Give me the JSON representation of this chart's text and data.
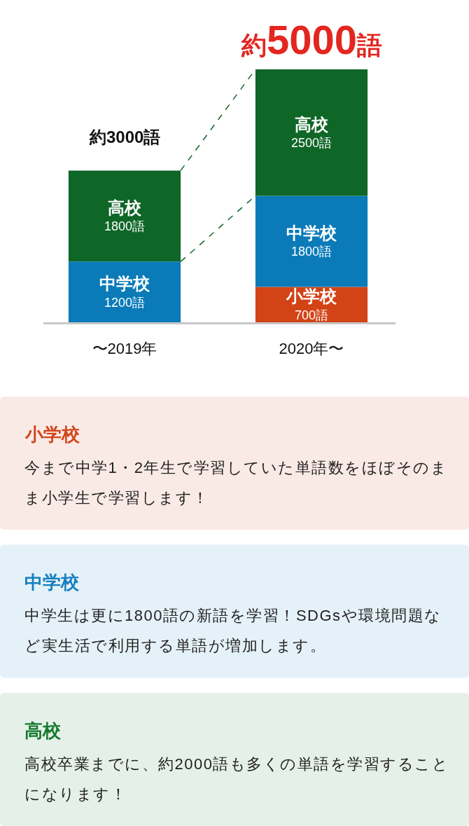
{
  "chart_data": [
    {
      "type": "bar",
      "stacked": true,
      "categories": [
        "〜2019年",
        "2020年〜"
      ],
      "series": [
        {
          "name": "小学校",
          "color": "#d24316",
          "values": [
            null,
            700
          ],
          "value_labels": [
            null,
            "700語"
          ]
        },
        {
          "name": "中学校",
          "color": "#0a7bb8",
          "values": [
            1200,
            1800
          ],
          "value_labels": [
            "1200語",
            "1800語"
          ]
        },
        {
          "name": "高校",
          "color": "#0e6627",
          "values": [
            1800,
            2500
          ],
          "value_labels": [
            "1800語",
            "2500語"
          ]
        }
      ],
      "totals": [
        "約3000語",
        "約5000語"
      ]
    },
    {
      "type": "other",
      "title": "小学校",
      "color": "#d4441a",
      "annotations": [
        "今まで中学1・2年生で学習していた単語数をほぼそのまま小学生で学習します！"
      ]
    },
    {
      "type": "other",
      "title": "中学校",
      "color": "#1480bf",
      "annotations": [
        "中学生は更に1800語の新語を学習！SDGsや環境問題など実生活で利用する単語が増加します。"
      ]
    },
    {
      "type": "other",
      "title": "高校",
      "color": "#137a2d",
      "annotations": [
        "高校卒業までに、約2000語も多くの単語を学習することになります！"
      ]
    }
  ]
}
